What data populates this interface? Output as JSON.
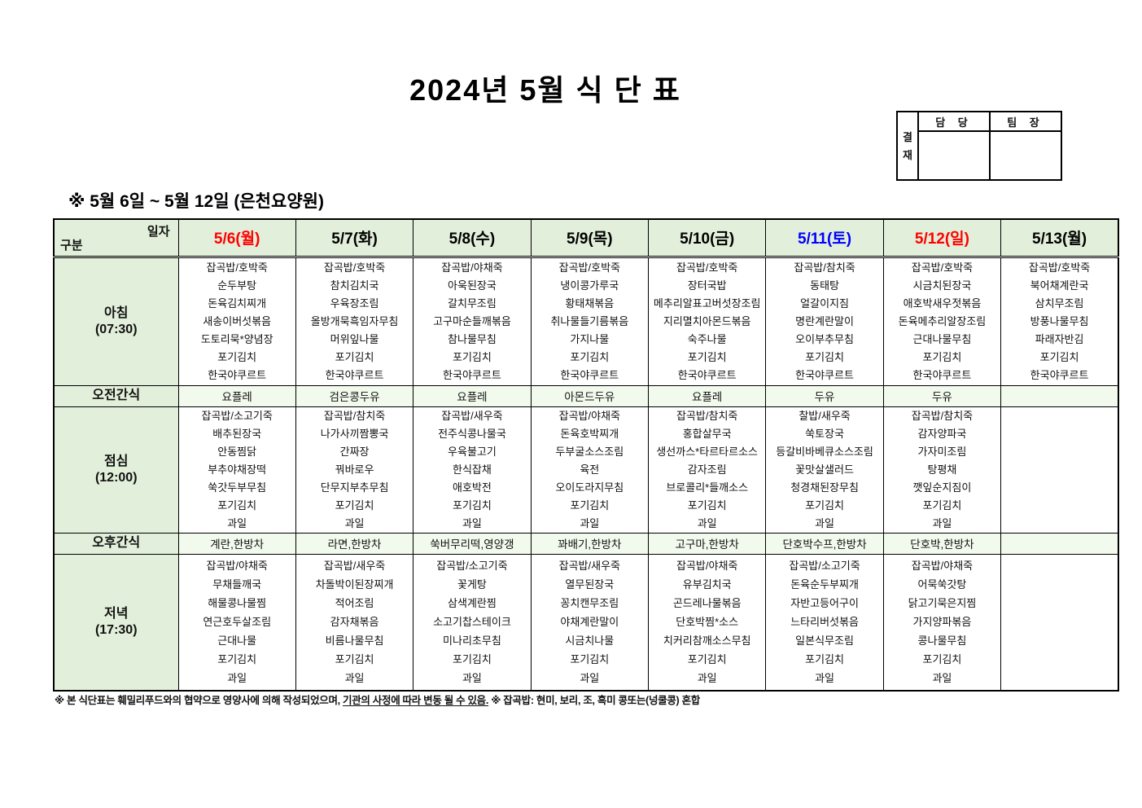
{
  "title": "2024년 5월 식 단 표",
  "subtitle": "※  5월 6일 ~ 5월 12일 (은천요양원)",
  "approval": {
    "stamp_chars": [
      "결",
      "재"
    ],
    "columns": [
      "담 당",
      "팀 장"
    ]
  },
  "colors": {
    "header_green": "#e2efda",
    "snack_green": "#f2f9ed",
    "sunday_red": "#ff0000",
    "saturday_blue": "#0000ff"
  },
  "table": {
    "corner": {
      "top": "일자",
      "bottom": "구분"
    },
    "days": [
      {
        "label": "5/6(월)",
        "color": "#ff0000"
      },
      {
        "label": "5/7(화)",
        "color": "#000000"
      },
      {
        "label": "5/8(수)",
        "color": "#000000"
      },
      {
        "label": "5/9(목)",
        "color": "#000000"
      },
      {
        "label": "5/10(금)",
        "color": "#000000"
      },
      {
        "label": "5/11(토)",
        "color": "#0000ff"
      },
      {
        "label": "5/12(일)",
        "color": "#ff0000"
      },
      {
        "label": "5/13(월)",
        "color": "#000000"
      }
    ],
    "meal_rows": [
      {
        "id": "breakfast",
        "type": "meal",
        "label": "아침",
        "time": "(07:30)",
        "cells": [
          [
            "잡곡밥/호박죽",
            "순두부탕",
            "돈육김치찌개",
            "새송이버섯볶음",
            "도토리묵*양념장",
            "포기김치",
            "한국야쿠르트"
          ],
          [
            "잡곡밥/호박죽",
            "참치김치국",
            "우육장조림",
            "올방개묵흑임자무침",
            "머위잎나물",
            "포기김치",
            "한국야쿠르트"
          ],
          [
            "잡곡밥/야채죽",
            "아욱된장국",
            "갈치무조림",
            "고구마순들깨볶음",
            "참나물무침",
            "포기김치",
            "한국야쿠르트"
          ],
          [
            "잡곡밥/호박죽",
            "냉이콩가루국",
            "황태채볶음",
            "취나물들기름볶음",
            "가지나물",
            "포기김치",
            "한국야쿠르트"
          ],
          [
            "잡곡밥/호박죽",
            "장터국밥",
            "메추리알표고버섯장조림",
            "지리멸치아몬드볶음",
            "숙주나물",
            "포기김치",
            "한국야쿠르트"
          ],
          [
            "잡곡밥/참치죽",
            "동태탕",
            "얼갈이지짐",
            "명란계란말이",
            "오이부추무침",
            "포기김치",
            "한국야쿠르트"
          ],
          [
            "잡곡밥/호박죽",
            "시금치된장국",
            "애호박새우젓볶음",
            "돈육메추리알장조림",
            "근대나물무침",
            "포기김치",
            "한국야쿠르트"
          ],
          [
            "잡곡밥/호박죽",
            "북어채계란국",
            "삼치무조림",
            "방풍나물무침",
            "파래자반김",
            "포기김치",
            "한국야쿠르트"
          ]
        ]
      },
      {
        "id": "amsnack",
        "type": "snack",
        "label": "오전간식",
        "cells": [
          "요플레",
          "검은콩두유",
          "요플레",
          "아몬드두유",
          "요플레",
          "두유",
          "두유",
          ""
        ]
      },
      {
        "id": "lunch",
        "type": "meal",
        "label": "점심",
        "time": "(12:00)",
        "cells": [
          [
            "잡곡밥/소고기죽",
            "배추된장국",
            "안동찜닭",
            "부추야채장떡",
            "쑥갓두부무침",
            "포기김치",
            "과일"
          ],
          [
            "잡곡밥/참치죽",
            "나가사끼짬뽕국",
            "간짜장",
            "꿔바로우",
            "단무지부추무침",
            "포기김치",
            "과일"
          ],
          [
            "잡곡밥/새우죽",
            "전주식콩나물국",
            "우육불고기",
            "한식잡채",
            "애호박전",
            "포기김치",
            "과일"
          ],
          [
            "잡곡밥/야채죽",
            "돈육호박찌개",
            "두부굴소스조림",
            "육전",
            "오이도라지무침",
            "포기김치",
            "과일"
          ],
          [
            "잡곡밥/참치죽",
            "홍합살무국",
            "생선까스*타르타르소스",
            "감자조림",
            "브로콜리*들깨소스",
            "포기김치",
            "과일"
          ],
          [
            "찰밥/새우죽",
            "쑥토장국",
            "등갈비바베큐소스조림",
            "꽃맛살샐러드",
            "청경채된장무침",
            "포기김치",
            "과일"
          ],
          [
            "잡곡밥/참치죽",
            "감자양파국",
            "가자미조림",
            "탕평채",
            "깻잎순지짐이",
            "포기김치",
            "과일"
          ],
          []
        ]
      },
      {
        "id": "pmsnack",
        "type": "snack",
        "label": "오후간식",
        "cells": [
          "계란,한방차",
          "라면,한방차",
          "쑥버무리떡,영양갱",
          "꽈배기,한방차",
          "고구마,한방차",
          "단호박수프,한방차",
          "단호박,한방차",
          ""
        ]
      },
      {
        "id": "dinner",
        "type": "meal",
        "label": "저녁",
        "time": "(17:30)",
        "cells": [
          [
            "잡곡밥/야채죽",
            "무채들깨국",
            "해물콩나물찜",
            "연근호두살조림",
            "근대나물",
            "포기김치",
            "과일"
          ],
          [
            "잡곡밥/새우죽",
            "차돌박이된장찌개",
            "적어조림",
            "감자채볶음",
            "비름나물무침",
            "포기김치",
            "과일"
          ],
          [
            "잡곡밥/소고기죽",
            "꽃게탕",
            "삼색계란찜",
            "소고기찹스테이크",
            "미나리초무침",
            "포기김치",
            "과일"
          ],
          [
            "잡곡밥/새우죽",
            "열무된장국",
            "꽁치캔무조림",
            "야채계란말이",
            "시금치나물",
            "포기김치",
            "과일"
          ],
          [
            "잡곡밥/야채죽",
            "유부김치국",
            "곤드레나물볶음",
            "단호박찜*소스",
            "치커리참깨소스무침",
            "포기김치",
            "과일"
          ],
          [
            "잡곡밥/소고기죽",
            "돈육순두부찌개",
            "자반고등어구이",
            "느타리버섯볶음",
            "일본식무조림",
            "포기김치",
            "과일"
          ],
          [
            "잡곡밥/야채죽",
            "어묵쑥갓탕",
            "닭고기묵은지찜",
            "가지양파볶음",
            "콩나물무침",
            "포기김치",
            "과일"
          ],
          []
        ]
      }
    ]
  },
  "footer": {
    "part1": "※  본 식단표는 훼밀리푸드와의 협약으로 영양사에 의해 작성되었으며, ",
    "underlined": "기관의 사정에 따라 변동 될 수 있음.",
    "part2": " ※ 잡곡밥: 현미, 보리, 조, 흑미 콩또는(넝쿨콩) 혼합"
  }
}
